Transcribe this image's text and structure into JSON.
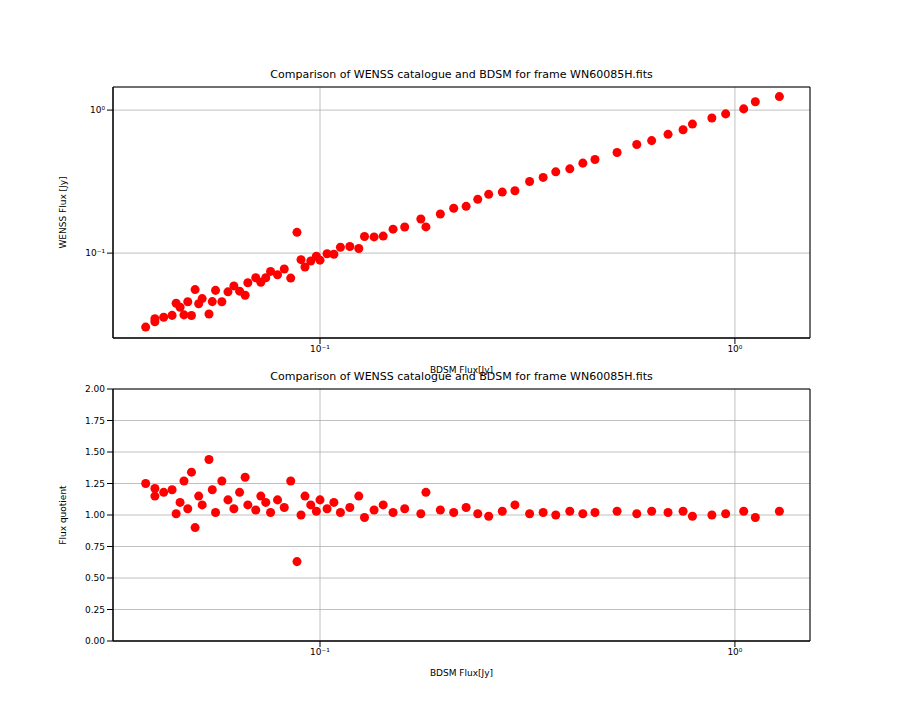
{
  "chart_data": [
    {
      "type": "scatter",
      "title": "Comparison of WENSS catalogue and BDSM for frame WN60085H.fits",
      "x_label": "BDSM Flux[Jy]",
      "y_label": "WENSS Flux [Jy]",
      "color": "#ff0000",
      "marker": "circle",
      "log": true,
      "grid": true,
      "xlim": [
        0.0317,
        1.517
      ],
      "ylim": [
        0.0255,
        1.45
      ],
      "xticks": [
        {
          "value": 0.1,
          "label": "10⁻¹"
        },
        {
          "value": 1,
          "label": "10⁰"
        }
      ],
      "yticks": [
        {
          "value": 0.1,
          "label": "10⁻¹"
        },
        {
          "value": 1,
          "label": "10⁰"
        }
      ],
      "x": [
        0.038,
        0.04,
        0.04,
        0.042,
        0.044,
        0.045,
        0.046,
        0.047,
        0.048,
        0.049,
        0.05,
        0.051,
        0.052,
        0.054,
        0.055,
        0.056,
        0.058,
        0.06,
        0.062,
        0.064,
        0.066,
        0.067,
        0.07,
        0.072,
        0.074,
        0.076,
        0.079,
        0.082,
        0.085,
        0.088,
        0.09,
        0.092,
        0.095,
        0.098,
        0.1,
        0.104,
        0.108,
        0.112,
        0.118,
        0.124,
        0.128,
        0.135,
        0.142,
        0.15,
        0.16,
        0.18,
        0.175,
        0.195,
        0.21,
        0.225,
        0.24,
        0.255,
        0.275,
        0.295,
        0.32,
        0.345,
        0.37,
        0.4,
        0.43,
        0.46,
        0.52,
        0.58,
        0.63,
        0.69,
        0.75,
        0.79,
        0.88,
        0.95,
        1.05,
        1.12,
        1.28
      ],
      "values": [
        0.0304,
        0.0348,
        0.0331,
        0.0356,
        0.0367,
        0.0446,
        0.0418,
        0.037,
        0.0457,
        0.0366,
        0.0556,
        0.0443,
        0.0481,
        0.0375,
        0.0458,
        0.0549,
        0.0457,
        0.0536,
        0.059,
        0.0542,
        0.0508,
        0.062,
        0.0673,
        0.0626,
        0.0673,
        0.0745,
        0.0705,
        0.0774,
        0.0669,
        0.1397,
        0.09,
        0.08,
        0.088,
        0.0951,
        0.0893,
        0.099,
        0.0982,
        0.1098,
        0.1113,
        0.1078,
        0.1306,
        0.1298,
        0.1315,
        0.1471,
        0.1524,
        0.1525,
        0.1733,
        0.1875,
        0.2059,
        0.2123,
        0.2376,
        0.2576,
        0.267,
        0.2731,
        0.3168,
        0.3382,
        0.37,
        0.3883,
        0.4257,
        0.451,
        0.5049,
        0.5743,
        0.6117,
        0.6765,
        0.7282,
        0.798,
        0.88,
        0.9406,
        1.0194,
        1.1429,
        1.2427
      ]
    },
    {
      "type": "scatter",
      "title": "Comparison of WENSS catalogue and BDSM for frame WN60085H.fits",
      "x_label": "BDSM Flux[Jy]",
      "y_label": "Flux quotient",
      "color": "#ff0000",
      "marker": "circle",
      "log": "x",
      "grid": true,
      "xlim": [
        0.0317,
        1.517
      ],
      "ylim": [
        0,
        2
      ],
      "xticks": [
        {
          "value": 0.1,
          "label": "10⁻¹"
        },
        {
          "value": 1,
          "label": "10⁰"
        }
      ],
      "yticks": [
        {
          "value": 0,
          "label": "0.00"
        },
        {
          "value": 0.25,
          "label": "0.25"
        },
        {
          "value": 0.5,
          "label": "0.50"
        },
        {
          "value": 0.75,
          "label": "0.75"
        },
        {
          "value": 1,
          "label": "1.00"
        },
        {
          "value": 1.25,
          "label": "1.25"
        },
        {
          "value": 1.5,
          "label": "1.50"
        },
        {
          "value": 1.75,
          "label": "1.75"
        },
        {
          "value": 2,
          "label": "2.00"
        }
      ],
      "x": [
        0.038,
        0.04,
        0.04,
        0.042,
        0.044,
        0.045,
        0.046,
        0.047,
        0.048,
        0.049,
        0.05,
        0.051,
        0.052,
        0.054,
        0.055,
        0.056,
        0.058,
        0.06,
        0.062,
        0.064,
        0.066,
        0.067,
        0.07,
        0.072,
        0.074,
        0.076,
        0.079,
        0.082,
        0.085,
        0.088,
        0.09,
        0.092,
        0.095,
        0.098,
        0.1,
        0.104,
        0.108,
        0.112,
        0.118,
        0.124,
        0.128,
        0.135,
        0.142,
        0.15,
        0.16,
        0.18,
        0.175,
        0.195,
        0.21,
        0.225,
        0.24,
        0.255,
        0.275,
        0.295,
        0.32,
        0.345,
        0.37,
        0.4,
        0.43,
        0.46,
        0.52,
        0.58,
        0.63,
        0.69,
        0.75,
        0.79,
        0.88,
        0.95,
        1.05,
        1.12,
        1.28
      ],
      "values": [
        1.25,
        1.15,
        1.21,
        1.18,
        1.2,
        1.01,
        1.1,
        1.27,
        1.05,
        1.34,
        0.9,
        1.15,
        1.08,
        1.44,
        1.2,
        1.02,
        1.27,
        1.12,
        1.05,
        1.18,
        1.3,
        1.08,
        1.04,
        1.15,
        1.1,
        1.02,
        1.12,
        1.06,
        1.27,
        0.63,
        1.0,
        1.15,
        1.08,
        1.03,
        1.12,
        1.05,
        1.1,
        1.02,
        1.06,
        1.15,
        0.98,
        1.04,
        1.08,
        1.02,
        1.05,
        1.18,
        1.01,
        1.04,
        1.02,
        1.06,
        1.01,
        0.99,
        1.03,
        1.08,
        1.01,
        1.02,
        1.0,
        1.03,
        1.01,
        1.02,
        1.03,
        1.01,
        1.03,
        1.02,
        1.03,
        0.99,
        1.0,
        1.01,
        1.03,
        0.98,
        1.03
      ]
    }
  ]
}
